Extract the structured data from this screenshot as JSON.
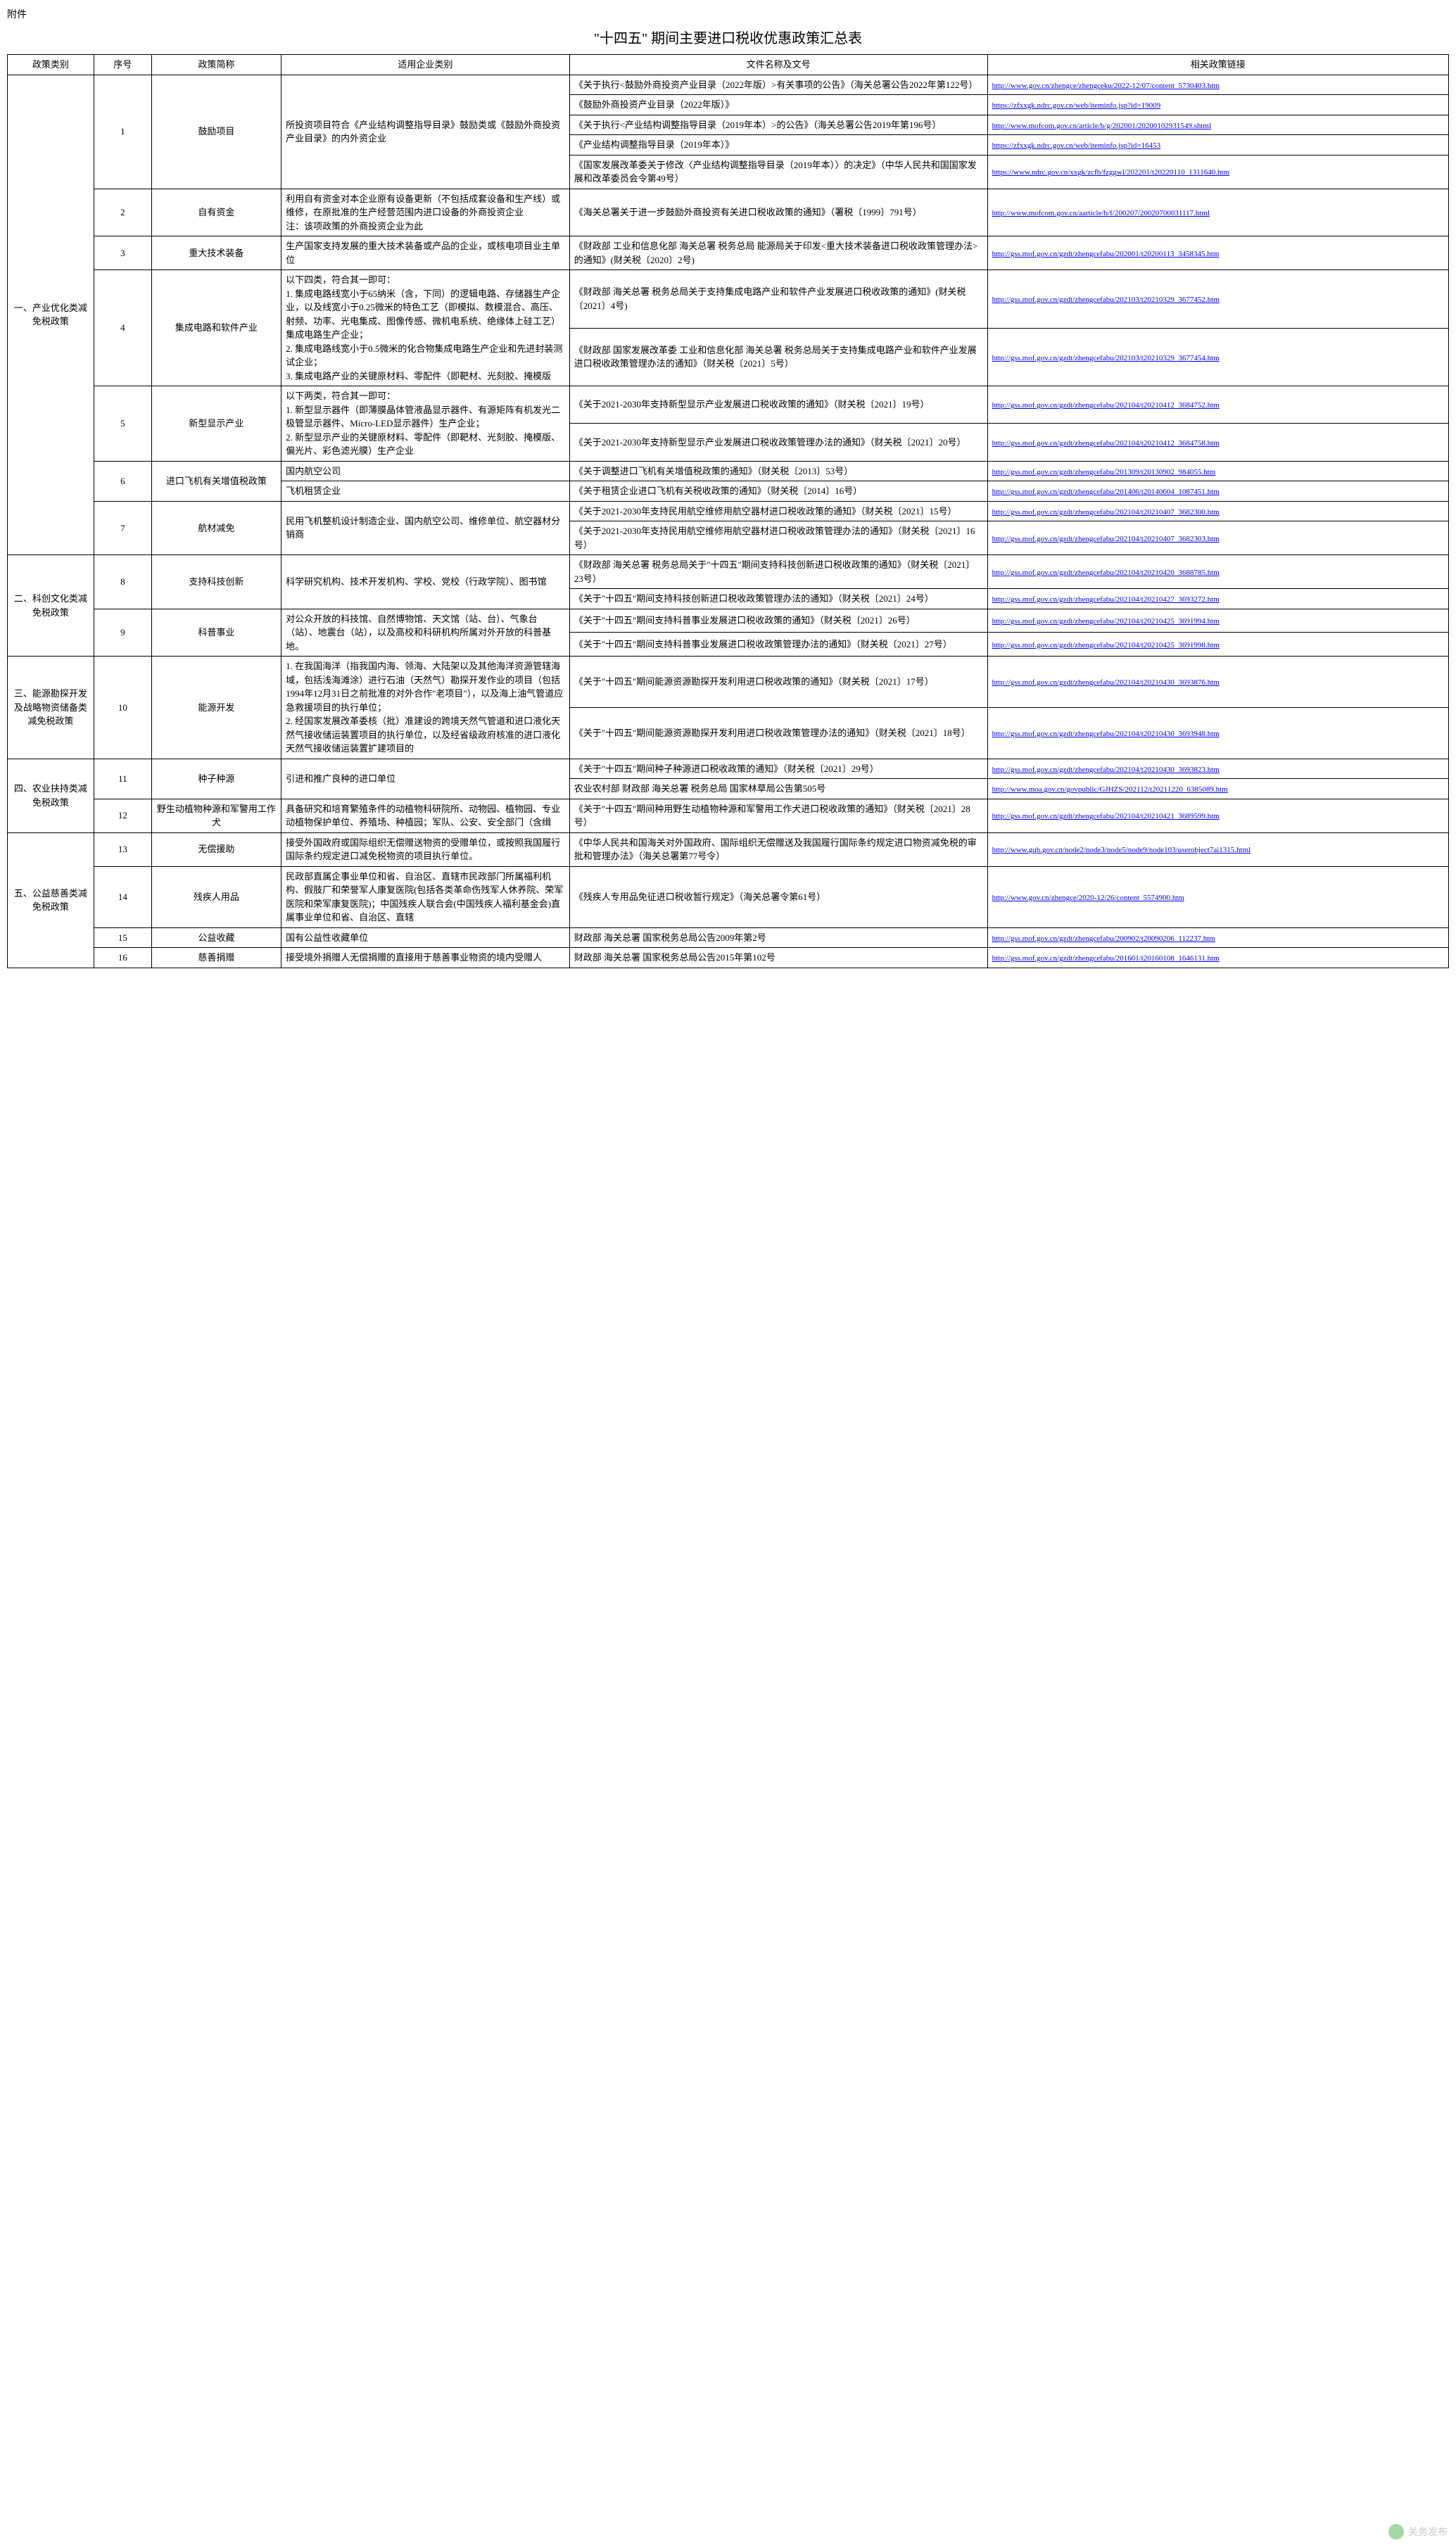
{
  "attachment_label": "附件",
  "title": "\"十四五\" 期间主要进口税收优惠政策汇总表",
  "headers": {
    "category": "政策类别",
    "seq": "序号",
    "policy_name": "政策简称",
    "scope": "适用企业类别",
    "doc": "文件名称及文号",
    "link": "相关政策链接"
  },
  "categories": [
    {
      "name": "一、产业优化类减免税政策",
      "policies": [
        {
          "seq": "1",
          "name": "鼓励项目",
          "scope_rows": [
            {
              "scope": "所投资项目符合《产业结构调整指导目录》鼓励类或《鼓励外商投资产业目录》的内外资企业",
              "docs": [
                {
                  "doc": "《关于执行<鼓励外商投资产业目录（2022年版）>有关事项的公告》（海关总署公告2022年第122号）",
                  "url": "http://www.gov.cn/zhengce/zhengceku/2022-12/07/content_5730403.htm"
                },
                {
                  "doc": "《鼓励外商投资产业目录（2022年版）》",
                  "url": "https://zfxxgk.ndrc.gov.cn/web/iteminfo.jsp?id=19009"
                },
                {
                  "doc": "《关于执行<产业结构调整指导目录（2019年本）>的公告》（海关总署公告2019年第196号）",
                  "url": "http://www.mofcom.gov.cn/article/b/g/202001/20200102931549.shtml"
                },
                {
                  "doc": "《产业结构调整指导目录（2019年本）》",
                  "url": "https://zfxxgk.ndrc.gov.cn/web/iteminfo.jsp?id=16453"
                },
                {
                  "doc": "《国家发展改革委关于修改〈产业结构调整指导目录（2019年本）〉的决定》（中华人民共和国国家发展和改革委员会令第49号）",
                  "url": "https://www.ndrc.gov.cn/xxgk/zcfb/fzggwl/202201/t20220110_1311640.htm"
                }
              ]
            }
          ]
        },
        {
          "seq": "2",
          "name": "自有资金",
          "scope_rows": [
            {
              "scope": "利用自有资金对本企业原有设备更新（不包括成套设备和生产线）或维修，在原批准的生产经营范围内进口设备的外商投资企业\n注：该项政策的外商投资企业为此",
              "docs": [
                {
                  "doc": "《海关总署关于进一步鼓励外商投资有关进口税收政策的通知》（署税〔1999〕791号）",
                  "url": "http://www.mofcom.gov.cn/aarticle/b/f/200207/20020700031117.html"
                }
              ]
            }
          ]
        },
        {
          "seq": "3",
          "name": "重大技术装备",
          "scope_rows": [
            {
              "scope": "生产国家支持发展的重大技术装备或产品的企业，或核电项目业主单位",
              "docs": [
                {
                  "doc": "《财政部 工业和信息化部 海关总署 税务总局 能源局关于印发<重大技术装备进口税收政策管理办法>的通知》(财关税〔2020〕2号)",
                  "url": "http://gss.mof.gov.cn/gzdt/zhengcefabu/202001/t20200113_3458345.htm"
                }
              ]
            }
          ]
        },
        {
          "seq": "4",
          "name": "集成电路和软件产业",
          "scope_rows": [
            {
              "scope": "以下四类，符合其一即可：\n1. 集成电路线宽小于65纳米（含，下同）的逻辑电路、存储器生产企业，以及线宽小于0.25微米的特色工艺（即模拟、数模混合、高压、射频、功率、光电集成、图像传感、微机电系统、绝缘体上硅工艺）集成电路生产企业；\n2. 集成电路线宽小于0.5微米的化合物集成电路生产企业和先进封装测试企业；\n3. 集成电路产业的关键原材料、零配件（即靶材、光刻胶、掩模版",
              "docs": [
                {
                  "doc": "《财政部 海关总署 税务总局关于支持集成电路产业和软件产业发展进口税收政策的通知》(财关税〔2021〕4号)",
                  "url": "http://gss.mof.gov.cn/gzdt/zhengcefabu/202103/t20210329_3677452.htm"
                },
                {
                  "doc": "《财政部 国家发展改革委 工业和信息化部 海关总署 税务总局关于支持集成电路产业和软件产业发展进口税收政策管理办法的通知》（财关税〔2021〕5号）",
                  "url": "http://gss.mof.gov.cn/gzdt/zhengcefabu/202103/t20210329_3677454.htm"
                }
              ]
            }
          ]
        },
        {
          "seq": "5",
          "name": "新型显示产业",
          "scope_rows": [
            {
              "scope": "以下两类，符合其一即可：\n1. 新型显示器件（即薄膜晶体管液晶显示器件、有源矩阵有机发光二极管显示器件、Micro-LED显示器件）生产企业；\n2. 新型显示产业的关键原材料、零配件（即靶材、光刻胶、掩模版、偏光片、彩色滤光膜）生产企业",
              "docs": [
                {
                  "doc": "《关于2021-2030年支持新型显示产业发展进口税收政策的通知》（财关税〔2021〕19号）",
                  "url": "http://gss.mof.gov.cn/gzdt/zhengcefabu/202104/t20210412_3684752.htm"
                },
                {
                  "doc": "《关于2021-2030年支持新型显示产业发展进口税收政策管理办法的通知》（财关税〔2021〕20号）",
                  "url": "http://gss.mof.gov.cn/gzdt/zhengcefabu/202104/t20210412_3684758.htm"
                }
              ]
            }
          ]
        },
        {
          "seq": "6",
          "name": "进口飞机有关增值税政策",
          "scope_rows": [
            {
              "scope": "国内航空公司",
              "docs": [
                {
                  "doc": "《关于调整进口飞机有关增值税政策的通知》（财关税〔2013〕53号）",
                  "url": "http://gss.mof.gov.cn/gzdt/zhengcefabu/201309/t20130902_984055.htm"
                }
              ]
            },
            {
              "scope": "飞机租赁企业",
              "docs": [
                {
                  "doc": "《关于租赁企业进口飞机有关税收政策的通知》（财关税〔2014〕16号）",
                  "url": "http://gss.mof.gov.cn/gzdt/zhengcefabu/201406/t20140604_1087451.htm"
                }
              ]
            }
          ]
        },
        {
          "seq": "7",
          "name": "航材减免",
          "scope_rows": [
            {
              "scope": "民用飞机整机设计制造企业、国内航空公司、维修单位、航空器材分销商",
              "docs": [
                {
                  "doc": "《关于2021-2030年支持民用航空维修用航空器材进口税收政策的通知》（财关税〔2021〕15号）",
                  "url": "http://gss.mof.gov.cn/gzdt/zhengcefabu/202104/t20210407_3682300.htm"
                },
                {
                  "doc": "《关于2021-2030年支持民用航空维修用航空器材进口税收政策管理办法的通知》（财关税〔2021〕16号）",
                  "url": "http://gss.mof.gov.cn/gzdt/zhengcefabu/202104/t20210407_3682303.htm"
                }
              ]
            }
          ]
        }
      ]
    },
    {
      "name": "二、科创文化类减免税政策",
      "policies": [
        {
          "seq": "8",
          "name": "支持科技创新",
          "scope_rows": [
            {
              "scope": "科学研究机构、技术开发机构、学校、党校（行政学院）、图书馆",
              "docs": [
                {
                  "doc": "《财政部 海关总署 税务总局关于\"十四五\"期间支持科技创新进口税收政策的通知》（财关税〔2021〕23号）",
                  "url": "http://gss.mof.gov.cn/gzdt/zhengcefabu/202104/t20210420_3688785.htm"
                },
                {
                  "doc": "《关于\"十四五\"期间支持科技创新进口税收政策管理办法的通知》（财关税〔2021〕24号）",
                  "url": "http://gss.mof.gov.cn/gzdt/zhengcefabu/202104/t20210427_3693272.htm"
                }
              ]
            }
          ]
        },
        {
          "seq": "9",
          "name": "科普事业",
          "scope_rows": [
            {
              "scope": "对公众开放的科技馆、自然博物馆、天文馆（站、台）、气象台（站）、地震台（站），以及高校和科研机构所属对外开放的科普基地。",
              "docs": [
                {
                  "doc": "《关于\"十四五\"期间支持科普事业发展进口税收政策的通知》（财关税〔2021〕26号）",
                  "url": "http://gss.mof.gov.cn/gzdt/zhengcefabu/202104/t20210425_3691994.htm"
                },
                {
                  "doc": "《关于\"十四五\"期间支持科普事业发展进口税收政策管理办法的通知》（财关税〔2021〕27号）",
                  "url": "http://gss.mof.gov.cn/gzdt/zhengcefabu/202104/t20210425_3691998.htm"
                }
              ]
            }
          ]
        }
      ]
    },
    {
      "name": "三、能源勘探开发及战略物资储备类减免税政策",
      "policies": [
        {
          "seq": "10",
          "name": "能源开发",
          "scope_rows": [
            {
              "scope": "1. 在我国海洋（指我国内海、领海、大陆架以及其他海洋资源管辖海域，包括浅海滩涂）进行石油（天然气）勘探开发作业的项目（包括1994年12月31日之前批准的对外合作\"老项目\"），以及海上油气管道应急救援项目的执行单位；\n2. 经国家发展改革委核（批）准建设的跨境天然气管道和进口液化天然气接收储运装置项目的执行单位，以及经省级政府核准的进口液化天然气接收储运装置扩建项目的",
              "docs": [
                {
                  "doc": "《关于\"十四五\"期间能源资源勘探开发利用进口税收政策的通知》（财关税〔2021〕17号）",
                  "url": "http://gss.mof.gov.cn/gzdt/zhengcefabu/202104/t20210430_3693876.htm"
                },
                {
                  "doc": "《关于\"十四五\"期间能源资源勘探开发利用进口税收政策管理办法的通知》（财关税〔2021〕18号）",
                  "url": "http://gss.mof.gov.cn/gzdt/zhengcefabu/202104/t20210430_3693948.htm"
                }
              ]
            }
          ]
        }
      ]
    },
    {
      "name": "四、农业扶持类减免税政策",
      "policies": [
        {
          "seq": "11",
          "name": "种子种源",
          "scope_rows": [
            {
              "scope": "引进和推广良种的进口单位",
              "docs": [
                {
                  "doc": "《关于\"十四五\"期间种子种源进口税收政策的通知》（财关税〔2021〕29号）",
                  "url": "http://gss.mof.gov.cn/gzdt/zhengcefabu/202104/t20210430_3693823.htm"
                },
                {
                  "doc": "农业农村部 财政部 海关总署 税务总局 国家林草局公告第505号",
                  "url": "http://www.moa.gov.cn/govpublic/GJHZS/202112/t20211220_6385089.htm"
                }
              ]
            }
          ]
        },
        {
          "seq": "12",
          "name": "野生动植物种源和军警用工作犬",
          "scope_rows": [
            {
              "scope": "具备研究和培育繁殖条件的动植物科研院所、动物园、植物园、专业动植物保护单位、养殖场、种植园；军队、公安、安全部门（含缉",
              "docs": [
                {
                  "doc": "《关于\"十四五\"期间种用野生动植物种源和军警用工作犬进口税收政策的通知》（财关税〔2021〕28号）",
                  "url": "http://gss.mof.gov.cn/gzdt/zhengcefabu/202104/t20210421_3689599.htm"
                }
              ]
            }
          ]
        }
      ]
    },
    {
      "name": "五、公益慈善类减免税政策",
      "policies": [
        {
          "seq": "13",
          "name": "无偿援助",
          "scope_rows": [
            {
              "scope": "接受外国政府或国际组织无偿赠送物资的受赠单位，或按照我国履行国际条约规定进口减免税物资的项目执行单位。",
              "docs": [
                {
                  "doc": "《中华人民共和国海关对外国政府、国际组织无偿赠送及我国履行国际条约规定进口物资减免税的审批和管理办法》（海关总署第77号令）",
                  "url": "http://www.gqb.gov.cn/node2/node3/node5/node9/node103/userobject7ai1315.html"
                }
              ]
            }
          ]
        },
        {
          "seq": "14",
          "name": "残疾人用品",
          "scope_rows": [
            {
              "scope": "民政部直属企事业单位和省、自治区、直辖市民政部门所属福利机构、假肢厂和荣誉军人康复医院(包括各类革命伤残军人休养院、荣军医院和荣军康复医院)；中国残疾人联合会(中国残疾人福利基金会)直属事业单位和省、自治区、直辖",
              "docs": [
                {
                  "doc": "《残疾人专用品免征进口税收暂行规定》（海关总署令第61号）",
                  "url": "http://www.gov.cn/zhengce/2020-12/26/content_5574900.htm"
                }
              ]
            }
          ]
        },
        {
          "seq": "15",
          "name": "公益收藏",
          "scope_rows": [
            {
              "scope": "国有公益性收藏单位",
              "docs": [
                {
                  "doc": "财政部 海关总署 国家税务总局公告2009年第2号",
                  "url": "http://gss.mof.gov.cn/gzdt/zhengcefabu/200902/t20090206_112237.htm"
                }
              ]
            }
          ]
        },
        {
          "seq": "16",
          "name": "慈善捐赠",
          "scope_rows": [
            {
              "scope": "接受境外捐赠人无偿捐赠的直接用于慈善事业物资的境内受赠人",
              "docs": [
                {
                  "doc": "财政部 海关总署 国家税务总局公告2015年第102号",
                  "url": "http://gss.mof.gov.cn/gzdt/zhengcefabu/201601/t20160108_1646131.htm"
                }
              ]
            }
          ]
        }
      ]
    }
  ],
  "watermark": "关务发布"
}
